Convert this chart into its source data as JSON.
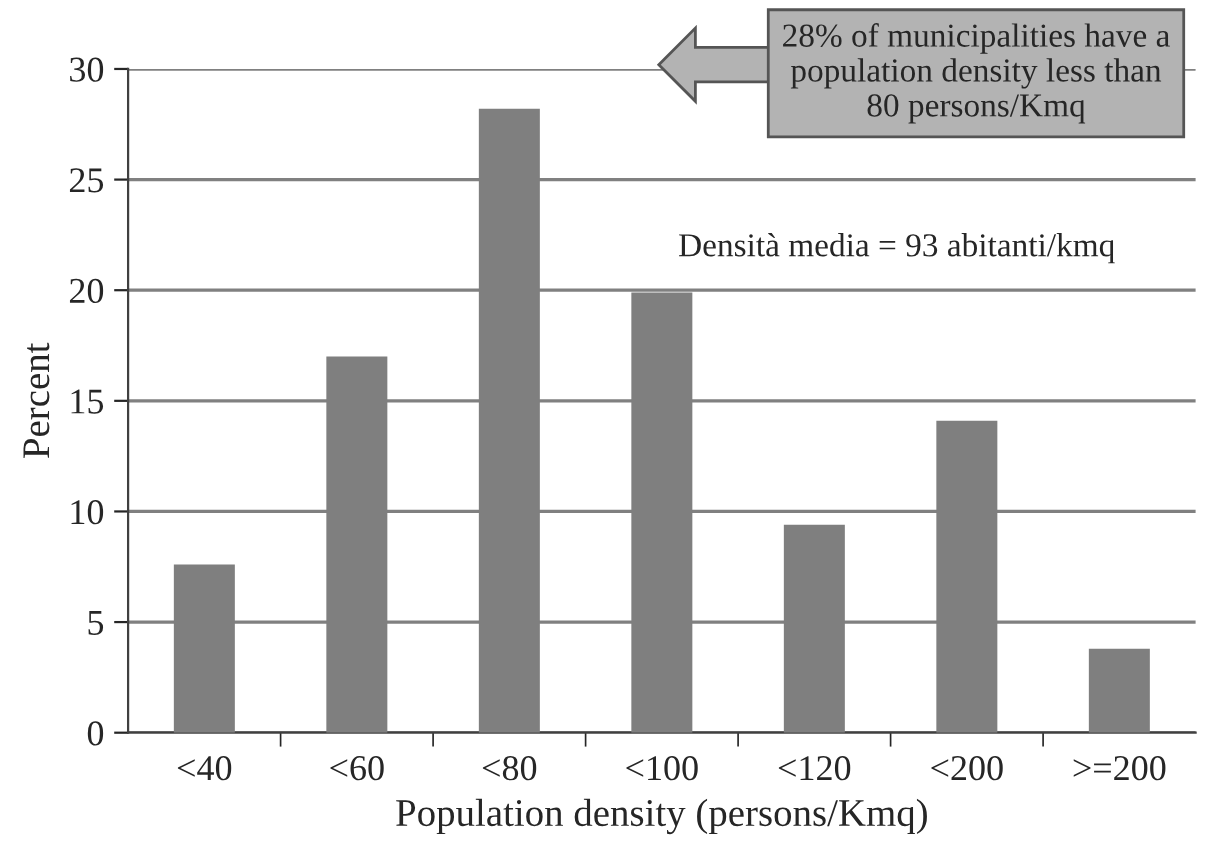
{
  "chart_data": {
    "type": "bar",
    "categories": [
      "<40",
      "<60",
      "<80",
      "<100",
      "<120",
      "<200",
      ">=200"
    ],
    "values": [
      7.6,
      17.0,
      28.2,
      19.9,
      9.4,
      14.1,
      3.8
    ],
    "color": "#7f7f7f",
    "xlabel": "Population density (persons/Kmq)",
    "ylabel": "Percent",
    "ylim": [
      0,
      30
    ],
    "yticks": [
      0,
      5,
      10,
      15,
      20,
      25,
      30
    ],
    "grid": "y",
    "annotations": [
      "28% of municipalities have a\npopulation density less than\n80 persons/Kmq",
      "Densità media = 93 abitanti/kmq"
    ]
  }
}
